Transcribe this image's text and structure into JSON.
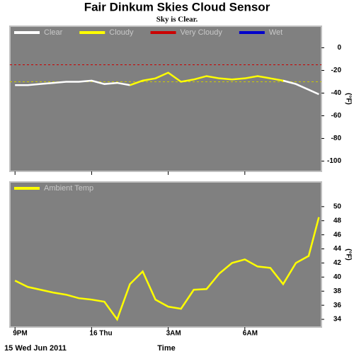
{
  "chart_data": [
    {
      "type": "line",
      "title": "Fair Dinkum Skies Cloud Sensor",
      "subtitle": "Sky is Clear.",
      "y_label": "(°F)",
      "x": [
        0,
        0.5,
        1,
        1.5,
        2,
        2.5,
        3,
        3.5,
        4,
        4.5,
        5,
        5.5,
        6,
        6.5,
        7,
        7.5,
        8,
        8.5,
        9,
        9.5,
        10,
        10.5,
        11,
        11.5,
        11.9
      ],
      "series": [
        {
          "name": "Clear",
          "color": "#ffffff",
          "values": [
            -33,
            -33,
            -32,
            -31,
            -30,
            -30,
            -29,
            -32,
            -31,
            -33,
            null,
            null,
            null,
            null,
            null,
            null,
            null,
            null,
            null,
            null,
            null,
            -29,
            -32,
            -37,
            -41
          ]
        },
        {
          "name": "Cloudy",
          "color": "#ffff00",
          "values": [
            null,
            null,
            null,
            null,
            null,
            null,
            null,
            null,
            null,
            -33,
            -29,
            -27,
            -22,
            -30,
            -28,
            -25,
            -27,
            -28,
            -27,
            -25,
            -27,
            -29,
            null,
            null,
            null
          ]
        },
        {
          "name": "Very Cloudy",
          "color": "#cc0000",
          "values": [
            null,
            null,
            null,
            null,
            null,
            null,
            null,
            null,
            null,
            null,
            null,
            null,
            null,
            null,
            null,
            null,
            null,
            null,
            null,
            null,
            null,
            null,
            null,
            null,
            null
          ]
        },
        {
          "name": "Wet",
          "color": "#0000cc",
          "values": [
            null,
            null,
            null,
            null,
            null,
            null,
            null,
            null,
            null,
            null,
            null,
            null,
            null,
            null,
            null,
            null,
            null,
            null,
            null,
            null,
            null,
            null,
            null,
            null,
            null
          ]
        }
      ],
      "thresholds": [
        {
          "value": -15,
          "color": "#cc0000"
        },
        {
          "value": -30,
          "color": "#cccc00"
        }
      ],
      "xlim": [
        -0.2,
        12
      ],
      "ylim": [
        -109,
        19
      ],
      "yticks": [
        -100,
        -80,
        -60,
        -40,
        -20,
        0
      ]
    },
    {
      "type": "line",
      "y_label": "(°F)",
      "x_label": "Time",
      "date_label": "15 Wed Jun 2011",
      "x": [
        0,
        0.5,
        1,
        1.5,
        2,
        2.5,
        3,
        3.5,
        4,
        4.5,
        5,
        5.5,
        6,
        6.5,
        7,
        7.5,
        8,
        8.5,
        9,
        9.5,
        10,
        10.5,
        11,
        11.5,
        11.9
      ],
      "series": [
        {
          "name": "Ambient Temp",
          "color": "#ffff00",
          "values": [
            39.5,
            38.6,
            38.2,
            37.8,
            37.5,
            37,
            36.8,
            36.5,
            34,
            39,
            40.8,
            36.8,
            35.8,
            35.5,
            38.2,
            38.3,
            40.5,
            42,
            42.5,
            41.5,
            41.3,
            39,
            42,
            43,
            48.5
          ]
        }
      ],
      "xlim": [
        -0.2,
        12
      ],
      "ylim": [
        32.9,
        53.5
      ],
      "yticks": [
        34,
        36,
        38,
        40,
        42,
        44,
        46,
        48,
        50
      ],
      "xticks": [
        {
          "value": 0,
          "label": "9PM"
        },
        {
          "value": 3,
          "label": "16 Thu"
        },
        {
          "value": 6,
          "label": "3AM"
        },
        {
          "value": 9,
          "label": "6AM"
        }
      ]
    }
  ]
}
